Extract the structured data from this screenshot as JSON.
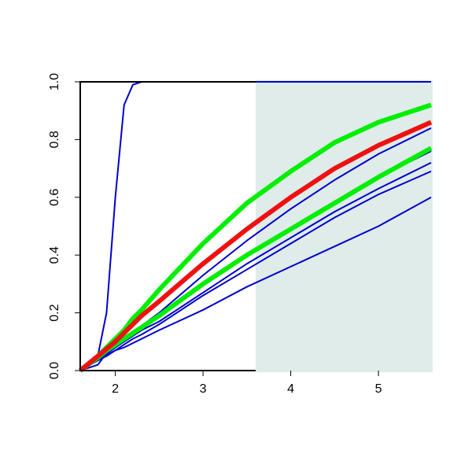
{
  "chart_data": {
    "type": "line",
    "x": [
      1.6,
      1.8,
      1.9,
      2.0,
      2.1,
      2.2,
      2.3,
      2.5,
      3,
      3.5,
      4,
      4.5,
      5,
      5.6
    ],
    "series": [
      {
        "color": "#0000cc",
        "width": 2,
        "values": [
          0,
          0.04,
          0.06,
          0.08,
          0.105,
          0.13,
          0.155,
          0.2,
          0.33,
          0.45,
          0.56,
          0.66,
          0.75,
          0.84
        ]
      },
      {
        "color": "#0000cc",
        "width": 2,
        "values": [
          0,
          0.02,
          0.06,
          0.085,
          0.105,
          0.125,
          0.145,
          0.19,
          0.3,
          0.4,
          0.49,
          0.58,
          0.67,
          0.76
        ]
      },
      {
        "color": "#0000cc",
        "width": 2,
        "values": [
          0,
          0.04,
          0.06,
          0.08,
          0.1,
          0.12,
          0.14,
          0.17,
          0.27,
          0.37,
          0.46,
          0.55,
          0.63,
          0.72
        ]
      },
      {
        "color": "#0000cc",
        "width": 2,
        "values": [
          0,
          0.035,
          0.055,
          0.07,
          0.09,
          0.11,
          0.125,
          0.16,
          0.26,
          0.35,
          0.44,
          0.53,
          0.61,
          0.69
        ]
      },
      {
        "color": "#0000cc",
        "width": 2,
        "values": [
          0,
          0.035,
          0.05,
          0.07,
          0.08,
          0.095,
          0.11,
          0.14,
          0.21,
          0.29,
          0.36,
          0.43,
          0.5,
          0.6
        ]
      },
      {
        "color": "#0000cc",
        "width": 2,
        "values": [
          0,
          0.05,
          0.2,
          0.6,
          0.92,
          0.99,
          1,
          1,
          1,
          1,
          1,
          1,
          1,
          1
        ]
      },
      {
        "color": "#00ee00",
        "width": 6,
        "values": [
          0,
          0.045,
          0.07,
          0.09,
          0.11,
          0.13,
          0.15,
          0.19,
          0.3,
          0.4,
          0.49,
          0.58,
          0.67,
          0.77
        ]
      },
      {
        "color": "#00ee00",
        "width": 6,
        "values": [
          0,
          0.05,
          0.08,
          0.11,
          0.14,
          0.18,
          0.21,
          0.28,
          0.44,
          0.58,
          0.69,
          0.79,
          0.86,
          0.92
        ]
      },
      {
        "color": "#ee1111",
        "width": 6,
        "values": [
          0,
          0.05,
          0.075,
          0.1,
          0.13,
          0.16,
          0.19,
          0.24,
          0.37,
          0.49,
          0.6,
          0.7,
          0.78,
          0.86
        ]
      }
    ],
    "shaded_region": [
      3.6,
      5.6
    ],
    "shade_color": "#dfecea",
    "xlim": [
      1.6,
      5.6
    ],
    "ylim": [
      0,
      1
    ],
    "xticks": [
      2,
      3,
      4,
      5
    ],
    "yticks": [
      {
        "value": 0,
        "label": "0.0"
      },
      {
        "value": 0.2,
        "label": "0.2"
      },
      {
        "value": 0.4,
        "label": "0.4"
      },
      {
        "value": 0.6,
        "label": "0.6"
      },
      {
        "value": 0.8,
        "label": "0.8"
      },
      {
        "value": 1,
        "label": "1.0"
      }
    ]
  }
}
